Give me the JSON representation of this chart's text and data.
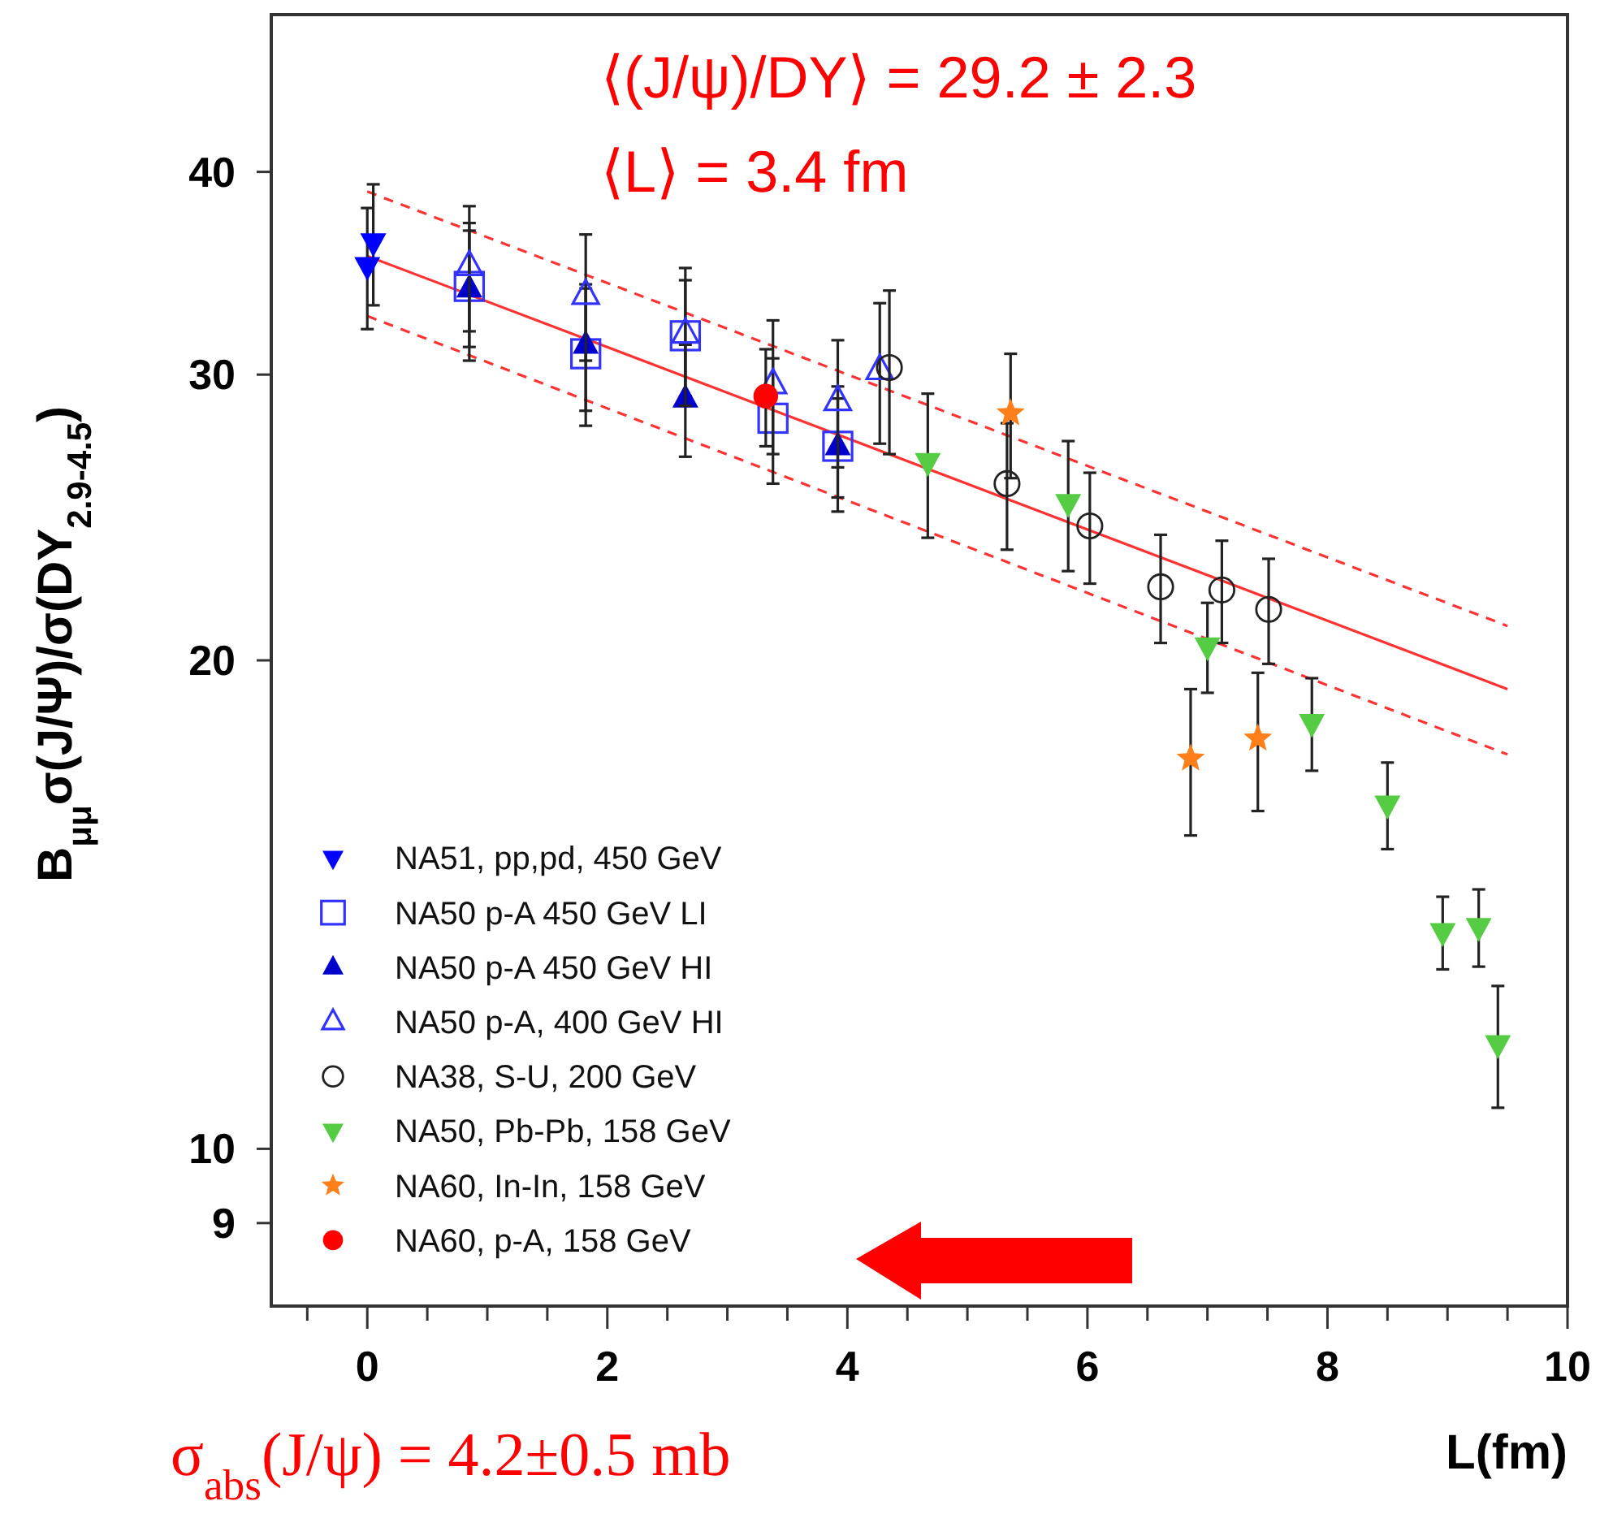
{
  "chart_data": {
    "type": "scatter",
    "xlabel": "L(fm)",
    "ylabel": "B$_{μμ}$σ(J/Ψ)/σ(DY$_{2.9-4.5}$)",
    "log": "y",
    "grid": false,
    "legend": "bottom left",
    "xlim": [
      -0.8,
      10
    ],
    "ylim": [
      8,
      50
    ],
    "xticks": [
      {
        "value": -0.5,
        "label": null
      },
      0,
      {
        "value": 0.5,
        "label": null
      },
      {
        "value": 1,
        "label": null
      },
      {
        "value": 1.5,
        "label": null
      },
      2,
      {
        "value": 2.5,
        "label": null
      },
      {
        "value": 3,
        "label": null
      },
      {
        "value": 3.5,
        "label": null
      },
      4,
      {
        "value": 4.5,
        "label": null
      },
      {
        "value": 5,
        "label": null
      },
      {
        "value": 5.5,
        "label": null
      },
      6,
      {
        "value": 6.5,
        "label": null
      },
      {
        "value": 7,
        "label": null
      },
      {
        "value": 7.5,
        "label": null
      },
      8,
      {
        "value": 8.5,
        "label": null
      },
      {
        "value": 9,
        "label": null
      },
      {
        "value": 9.5,
        "label": null
      },
      10
    ],
    "yticks": [
      9,
      10,
      20,
      30,
      40
    ],
    "annotations": [
      "⟨(J/ψ)/DY⟩ = 29.2 ± 2.3",
      "⟨L⟩ = 3.4 fm",
      "σ$_{abs}$(J/ψ) = 4.2±0.5 mb"
    ],
    "series": [
      {
        "type": "line",
        "color": "#ff3333",
        "line_style": "solid",
        "marker": "none",
        "x": [
          0,
          9.5
        ],
        "values": [
          35.5,
          19.2
        ]
      },
      {
        "type": "line",
        "color": "#ff3333",
        "line_style": "dashed",
        "marker": "none",
        "x": [
          0,
          9.5
        ],
        "values": [
          38.9,
          21.0
        ]
      },
      {
        "type": "line",
        "color": "#ff3333",
        "line_style": "dashed",
        "marker": "none",
        "x": [
          0,
          9.5
        ],
        "values": [
          32.6,
          17.5
        ]
      },
      {
        "name": "NA51, pp,pd, 450 GeV",
        "color": "#0000ff",
        "marker": "triangle-down",
        "x": [
          0,
          0.05
        ],
        "values": [
          35.0,
          36.2
        ],
        "errors": [
          3.0,
          3.1
        ]
      },
      {
        "name": "NA50 p-A 450 GeV LI",
        "color": "#3333ff",
        "marker": "square-open",
        "x": [
          0.85,
          1.82,
          2.65,
          3.38,
          3.92
        ],
        "values": [
          34.0,
          30.9,
          31.7,
          28.2,
          27.1
        ],
        "errors": [
          2.8,
          3.0,
          2.6,
          2.5,
          2.4
        ]
      },
      {
        "name": "NA50 p-A 450 GeV HI",
        "color": "#0000cc",
        "marker": "triangle",
        "x": [
          0.85,
          1.82,
          2.65,
          3.92
        ],
        "values": [
          33.9,
          31.3,
          29.0,
          27.1
        ],
        "errors": [
          3.3,
          2.8,
          2.3,
          1.9
        ]
      },
      {
        "name": "NA50 p-A, 400 GeV HI",
        "color": "#3333ff",
        "marker": "triangle-open",
        "x": [
          0.85,
          1.82,
          2.65,
          3.38,
          3.92,
          4.27
        ],
        "values": [
          35.0,
          33.6,
          31.8,
          29.6,
          28.9,
          30.2
        ],
        "errors": [
          3.1,
          3.0,
          3.1,
          2.8,
          2.6,
          3.0
        ]
      },
      {
        "name": "NA38, S-U, 200 GeV",
        "color": "#222222",
        "marker": "circle-open",
        "x": [
          4.35,
          5.33,
          6.02,
          6.61,
          7.12,
          7.51
        ],
        "values": [
          30.3,
          25.7,
          24.2,
          22.2,
          22.1,
          21.5
        ],
        "errors": [
          3.5,
          2.3,
          1.9,
          1.7,
          1.6,
          1.6
        ]
      },
      {
        "name": "NA50, Pb-Pb, 158 GeV",
        "color": "#55cc44",
        "marker": "triangle-down",
        "x": [
          4.67,
          5.84,
          7.0,
          7.87,
          8.5,
          8.96,
          9.26,
          9.42
        ],
        "values": [
          26.5,
          25.0,
          20.4,
          18.3,
          16.3,
          13.6,
          13.7,
          11.6
        ],
        "errors": [
          2.7,
          2.3,
          1.3,
          1.2,
          1.0,
          0.7,
          0.75,
          1.0
        ]
      },
      {
        "name": "NA60, In-In, 158 GeV",
        "color": "#ff7f1a",
        "marker": "star",
        "x": [
          5.36,
          6.86,
          7.42
        ],
        "values": [
          28.4,
          17.4,
          17.9
        ],
        "errors": [
          2.5,
          1.8,
          1.75
        ]
      },
      {
        "name": "NA60, p-A, 158 GeV",
        "color": "#ff0000",
        "marker": "circle",
        "x": [
          3.32
        ],
        "values": [
          29.1
        ],
        "errors": [
          2.0
        ]
      }
    ]
  }
}
